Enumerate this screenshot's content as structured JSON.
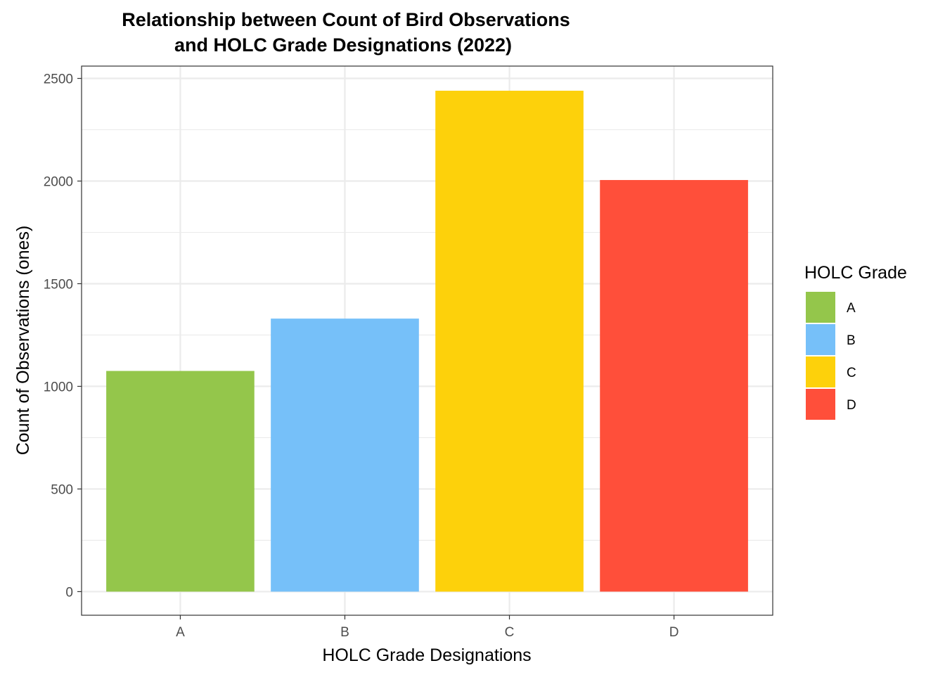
{
  "chart_data": {
    "type": "bar",
    "title_lines": [
      "Relationship between Count of Bird Observations",
      "and HOLC Grade Designations (2022)"
    ],
    "xlabel": "HOLC Grade Designations",
    "ylabel": "Count of Observations (ones)",
    "categories": [
      "A",
      "B",
      "C",
      "D"
    ],
    "values": [
      1075,
      1330,
      2440,
      2005
    ],
    "colors": [
      "#94c64b",
      "#76c0f9",
      "#fdd10b",
      "#ff4f3a"
    ],
    "ylim": [
      -115,
      2560
    ],
    "yticks": [
      0,
      500,
      1000,
      1500,
      2000,
      2500
    ],
    "grid": true,
    "legend": {
      "title": "HOLC Grade",
      "position": "right",
      "items": [
        "A",
        "B",
        "C",
        "D"
      ]
    }
  }
}
